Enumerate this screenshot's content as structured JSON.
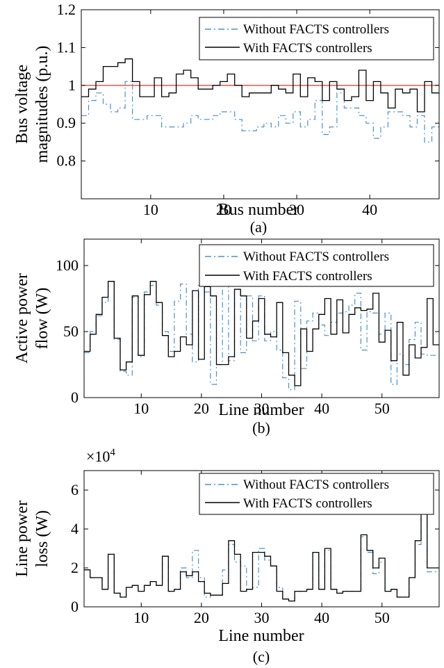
{
  "colors": {
    "without": "#4a90c8",
    "with": "#000000",
    "reference": "#e8463c"
  },
  "chart_data": [
    {
      "type": "line",
      "style": "stairs",
      "caption": "(a)",
      "xlabel": "Bus number",
      "ylabel": [
        "Bus voltage",
        "magnitudes (p.u.)"
      ],
      "xlim": [
        1,
        49
      ],
      "ylim": [
        0.7,
        1.2
      ],
      "xticks": [
        10,
        20,
        30,
        40
      ],
      "yticks": [
        0.8,
        0.9,
        1,
        1.1,
        1.2
      ],
      "ytick_labels": [
        "0.8",
        "0.9",
        "1",
        "1.1",
        "1.2"
      ],
      "reference_line": 1.0,
      "legend_position": "top-right",
      "x": [
        1,
        2,
        3,
        4,
        5,
        6,
        7,
        8,
        9,
        10,
        11,
        12,
        13,
        14,
        15,
        16,
        17,
        18,
        19,
        20,
        21,
        22,
        23,
        24,
        25,
        26,
        27,
        28,
        29,
        30,
        31,
        32,
        33,
        34,
        35,
        36,
        37,
        38,
        39,
        40,
        41,
        42,
        43,
        44,
        45,
        46,
        47,
        48,
        49
      ],
      "series": [
        {
          "name": "Without FACTS controllers",
          "style": "dash-dot",
          "values": [
            0.92,
            0.96,
            0.98,
            0.95,
            0.93,
            0.94,
            1.01,
            0.91,
            0.91,
            0.92,
            0.92,
            0.89,
            0.89,
            0.89,
            0.9,
            0.92,
            0.91,
            0.91,
            0.92,
            0.93,
            0.93,
            0.91,
            0.88,
            0.88,
            0.89,
            0.9,
            0.89,
            0.92,
            0.9,
            0.93,
            0.89,
            0.91,
            0.96,
            0.87,
            0.89,
            0.98,
            0.94,
            0.94,
            0.92,
            0.9,
            0.86,
            0.89,
            0.93,
            0.93,
            0.92,
            0.89,
            0.92,
            0.85,
            0.89
          ]
        },
        {
          "name": "With FACTS controllers",
          "style": "solid",
          "values": [
            0.97,
            0.99,
            1.01,
            1.05,
            1.05,
            1.06,
            1.07,
            1.01,
            0.97,
            0.97,
            1.02,
            0.97,
            0.98,
            1.03,
            1.04,
            1.02,
            0.99,
            0.99,
            1.0,
            1.01,
            1.03,
            1.0,
            0.97,
            0.98,
            0.98,
            0.98,
            1.0,
            0.99,
            0.98,
            1.03,
            0.97,
            1.02,
            1.01,
            0.96,
            1.01,
            0.99,
            0.96,
            0.97,
            1.04,
            0.96,
            1.01,
            0.98,
            0.94,
            0.99,
            0.98,
            0.99,
            0.93,
            1.01,
            0.98
          ]
        }
      ]
    },
    {
      "type": "line",
      "style": "stairs",
      "caption": "(b)",
      "xlabel": "Line number",
      "ylabel": [
        "Active power",
        "flow (W)"
      ],
      "xlim": [
        1,
        59
      ],
      "ylim": [
        0,
        120
      ],
      "xticks": [
        10,
        20,
        30,
        40,
        50
      ],
      "yticks": [
        0,
        50,
        100
      ],
      "ytick_labels": [
        "0",
        "50",
        "100"
      ],
      "legend_position": "top-right",
      "x": [
        1,
        2,
        3,
        4,
        5,
        6,
        7,
        8,
        9,
        10,
        11,
        12,
        13,
        14,
        15,
        16,
        17,
        18,
        19,
        20,
        21,
        22,
        23,
        24,
        25,
        26,
        27,
        28,
        29,
        30,
        31,
        32,
        33,
        34,
        35,
        36,
        37,
        38,
        39,
        40,
        41,
        42,
        43,
        44,
        45,
        46,
        47,
        48,
        49,
        50,
        51,
        52,
        53,
        54,
        55,
        56,
        57,
        58,
        59
      ],
      "series": [
        {
          "name": "Without FACTS controllers",
          "style": "dash-dot",
          "values": [
            34,
            50,
            62,
            72,
            88,
            44,
            20,
            17,
            76,
            31,
            80,
            85,
            70,
            50,
            35,
            73,
            86,
            48,
            27,
            85,
            80,
            10,
            25,
            85,
            28,
            82,
            34,
            77,
            43,
            77,
            43,
            50,
            36,
            15,
            6,
            73,
            22,
            58,
            64,
            55,
            47,
            57,
            64,
            65,
            70,
            79,
            36,
            65,
            64,
            48,
            64,
            10,
            33,
            25,
            44,
            57,
            33,
            32,
            32
          ]
        },
        {
          "name": "With FACTS controllers",
          "style": "solid",
          "values": [
            35,
            48,
            63,
            76,
            88,
            45,
            21,
            27,
            77,
            32,
            78,
            88,
            72,
            47,
            31,
            35,
            46,
            40,
            81,
            29,
            84,
            77,
            25,
            25,
            31,
            82,
            77,
            45,
            58,
            75,
            48,
            46,
            72,
            34,
            17,
            9,
            52,
            35,
            52,
            63,
            75,
            48,
            74,
            49,
            63,
            68,
            66,
            67,
            79,
            42,
            51,
            28,
            57,
            17,
            40,
            30,
            38,
            75,
            40
          ]
        }
      ]
    },
    {
      "type": "line",
      "style": "stairs",
      "caption": "(c)",
      "xlabel": "Line number",
      "ylabel": [
        "Line power",
        "loss (W)"
      ],
      "multiplier_label": "×10",
      "multiplier_exponent": "4",
      "xlim": [
        1,
        59
      ],
      "ylim": [
        0,
        7
      ],
      "xticks": [
        10,
        20,
        30,
        40,
        50
      ],
      "yticks": [
        0,
        2,
        4,
        6
      ],
      "ytick_labels": [
        "0",
        "2",
        "4",
        "6"
      ],
      "legend_position": "top-right",
      "x": [
        1,
        2,
        3,
        4,
        5,
        6,
        7,
        8,
        9,
        10,
        11,
        12,
        13,
        14,
        15,
        16,
        17,
        18,
        19,
        20,
        21,
        22,
        23,
        24,
        25,
        26,
        27,
        28,
        29,
        30,
        31,
        32,
        33,
        34,
        35,
        36,
        37,
        38,
        39,
        40,
        41,
        42,
        43,
        44,
        45,
        46,
        47,
        48,
        49,
        50,
        51,
        52,
        53,
        54,
        55,
        56,
        57,
        58,
        59
      ],
      "series": [
        {
          "name": "Without FACTS controllers",
          "style": "dash-dot",
          "values": [
            1.9,
            1.5,
            1.5,
            0.9,
            2.7,
            0.7,
            0.5,
            1.0,
            1.1,
            0.8,
            1.1,
            1.3,
            1.1,
            2.6,
            0.8,
            0.9,
            2.0,
            1.5,
            2.9,
            1.5,
            0.5,
            0.6,
            0.6,
            1.9,
            3.2,
            2.3,
            2.1,
            0.9,
            1.0,
            3.0,
            2.4,
            2.1,
            1.0,
            0.4,
            0.3,
            0.8,
            0.8,
            0.9,
            2.8,
            0.9,
            2.9,
            0.9,
            0.7,
            0.8,
            0.8,
            0.8,
            3.6,
            2.8,
            1.7,
            2.3,
            0.8,
            0.9,
            0.5,
            0.5,
            1.5,
            3.2,
            5.5,
            1.8,
            1.8
          ]
        },
        {
          "name": "With FACTS controllers",
          "style": "solid",
          "values": [
            1.9,
            1.5,
            1.5,
            0.9,
            2.7,
            0.7,
            0.5,
            1.0,
            1.1,
            0.8,
            1.1,
            1.3,
            1.1,
            2.6,
            0.8,
            0.9,
            1.8,
            1.6,
            1.8,
            1.3,
            0.7,
            0.6,
            0.6,
            1.2,
            3.4,
            2.7,
            0.8,
            0.9,
            2.8,
            2.8,
            2.6,
            2.1,
            0.8,
            0.4,
            0.3,
            0.8,
            0.8,
            0.9,
            2.8,
            0.9,
            3.0,
            0.9,
            0.7,
            0.8,
            0.8,
            0.8,
            3.7,
            2.9,
            2.0,
            2.5,
            0.8,
            0.9,
            0.5,
            0.5,
            1.5,
            3.4,
            5.6,
            2.0,
            2.0
          ]
        }
      ]
    }
  ]
}
